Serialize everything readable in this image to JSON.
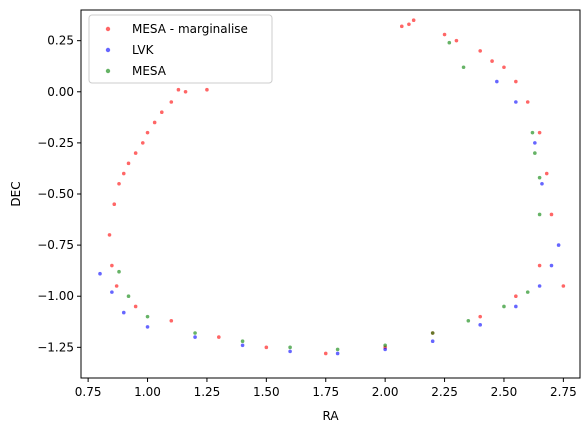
{
  "chart_data": {
    "type": "scatter",
    "title": "",
    "xlabel": "RA",
    "ylabel": "DEC",
    "xlim": [
      0.72,
      2.82
    ],
    "ylim": [
      -1.4,
      0.4
    ],
    "xticks": [
      0.75,
      1.0,
      1.25,
      1.5,
      1.75,
      2.0,
      2.25,
      2.5,
      2.75
    ],
    "xtick_labels": [
      "0.75",
      "1.00",
      "1.25",
      "1.50",
      "1.75",
      "2.00",
      "2.25",
      "2.50",
      "2.75"
    ],
    "yticks": [
      0.25,
      0.0,
      -0.25,
      -0.5,
      -0.75,
      -1.0,
      -1.25
    ],
    "ytick_labels": [
      "0.25",
      "0.00",
      "−0.25",
      "−0.50",
      "−0.75",
      "−1.00",
      "−1.25"
    ],
    "grid": false,
    "legend_position": "upper-left",
    "series": [
      {
        "name": "MESA - marginalise",
        "color": "#ff0000",
        "opacity": 0.6,
        "values": [
          [
            0.86,
            -0.55
          ],
          [
            0.88,
            -0.45
          ],
          [
            0.9,
            -0.4
          ],
          [
            0.92,
            -0.35
          ],
          [
            0.95,
            -0.3
          ],
          [
            0.98,
            -0.25
          ],
          [
            1.0,
            -0.2
          ],
          [
            1.03,
            -0.15
          ],
          [
            1.06,
            -0.1
          ],
          [
            1.1,
            -0.05
          ],
          [
            1.13,
            0.01
          ],
          [
            1.16,
            0.0
          ],
          [
            1.25,
            0.01
          ],
          [
            0.84,
            -0.7
          ],
          [
            0.85,
            -0.85
          ],
          [
            0.87,
            -0.95
          ],
          [
            0.95,
            -1.05
          ],
          [
            1.1,
            -1.12
          ],
          [
            1.3,
            -1.2
          ],
          [
            1.5,
            -1.25
          ],
          [
            1.75,
            -1.28
          ],
          [
            2.0,
            -1.25
          ],
          [
            2.2,
            -1.18
          ],
          [
            2.4,
            -1.1
          ],
          [
            2.55,
            -1.0
          ],
          [
            2.65,
            -0.85
          ],
          [
            2.7,
            -0.6
          ],
          [
            2.68,
            -0.4
          ],
          [
            2.65,
            -0.2
          ],
          [
            2.6,
            -0.05
          ],
          [
            2.55,
            0.05
          ],
          [
            2.5,
            0.12
          ],
          [
            2.45,
            0.15
          ],
          [
            2.4,
            0.2
          ],
          [
            2.3,
            0.25
          ],
          [
            2.25,
            0.28
          ],
          [
            2.12,
            0.35
          ],
          [
            2.1,
            0.33
          ],
          [
            2.07,
            0.32
          ],
          [
            2.75,
            -0.95
          ]
        ]
      },
      {
        "name": "LVK",
        "color": "#0000ff",
        "opacity": 0.6,
        "values": [
          [
            0.8,
            -0.89
          ],
          [
            0.85,
            -0.98
          ],
          [
            0.9,
            -1.08
          ],
          [
            1.0,
            -1.15
          ],
          [
            1.2,
            -1.2
          ],
          [
            1.4,
            -1.24
          ],
          [
            1.6,
            -1.27
          ],
          [
            1.8,
            -1.28
          ],
          [
            2.0,
            -1.26
          ],
          [
            2.2,
            -1.22
          ],
          [
            2.4,
            -1.14
          ],
          [
            2.55,
            -1.05
          ],
          [
            2.65,
            -0.95
          ],
          [
            2.7,
            -0.85
          ],
          [
            2.73,
            -0.75
          ],
          [
            2.66,
            -0.45
          ],
          [
            2.63,
            -0.25
          ],
          [
            2.55,
            -0.05
          ],
          [
            2.47,
            0.05
          ]
        ]
      },
      {
        "name": "MESA",
        "color": "#008000",
        "opacity": 0.6,
        "values": [
          [
            0.88,
            -0.88
          ],
          [
            0.92,
            -1.0
          ],
          [
            1.0,
            -1.1
          ],
          [
            1.2,
            -1.18
          ],
          [
            1.4,
            -1.22
          ],
          [
            1.6,
            -1.25
          ],
          [
            1.8,
            -1.26
          ],
          [
            2.0,
            -1.24
          ],
          [
            2.2,
            -1.18
          ],
          [
            2.35,
            -1.12
          ],
          [
            2.5,
            -1.05
          ],
          [
            2.6,
            -0.98
          ],
          [
            2.65,
            -0.6
          ],
          [
            2.65,
            -0.42
          ],
          [
            2.63,
            -0.3
          ],
          [
            2.62,
            -0.2
          ],
          [
            2.27,
            0.24
          ],
          [
            2.33,
            0.12
          ]
        ]
      }
    ]
  }
}
